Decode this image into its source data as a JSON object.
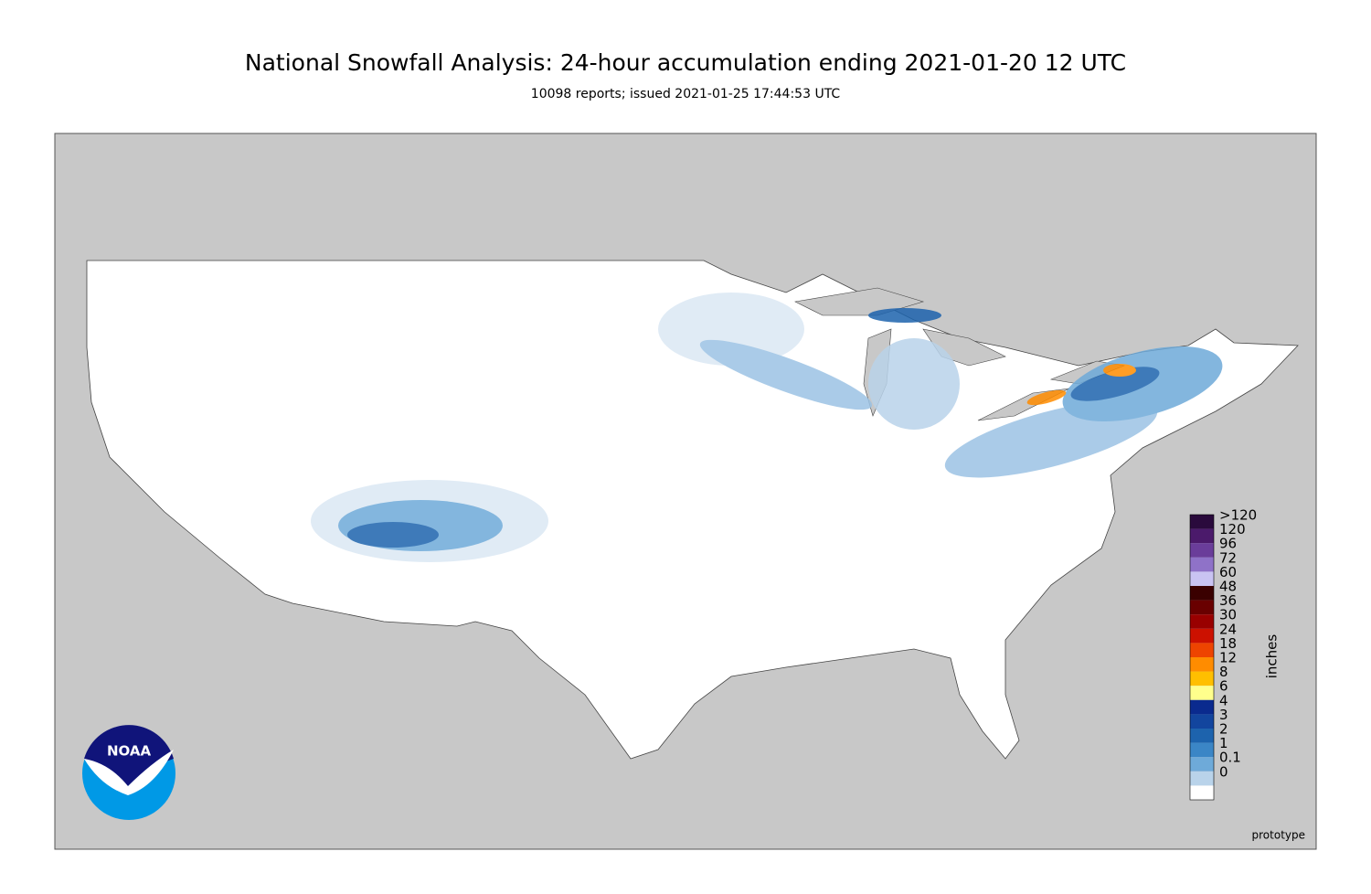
{
  "title": "National Snowfall Analysis: 24-hour accumulation ending 2021-01-20 12 UTC",
  "subtitle": "10098 reports; issued 2021-01-25 17:44:53 UTC",
  "legend": {
    "unit": "inches",
    "items": [
      {
        "label": ">120",
        "color": "#2a0a3c"
      },
      {
        "label": "120",
        "color": "#4b1a6b"
      },
      {
        "label": "96",
        "color": "#6a3d9a"
      },
      {
        "label": "72",
        "color": "#8f72c8"
      },
      {
        "label": "60",
        "color": "#c9c3f2"
      },
      {
        "label": "48",
        "color": "#3a0000"
      },
      {
        "label": "36",
        "color": "#690000"
      },
      {
        "label": "30",
        "color": "#990000"
      },
      {
        "label": "24",
        "color": "#cc1100"
      },
      {
        "label": "18",
        "color": "#ee4400"
      },
      {
        "label": "12",
        "color": "#ff8c00"
      },
      {
        "label": "8",
        "color": "#ffbf00"
      },
      {
        "label": "6",
        "color": "#ffff8c"
      },
      {
        "label": "4",
        "color": "#0a2a8e"
      },
      {
        "label": "3",
        "color": "#12459e"
      },
      {
        "label": "2",
        "color": "#1d63ad"
      },
      {
        "label": "1",
        "color": "#3b86c6"
      },
      {
        "label": "0.1",
        "color": "#6eaad9"
      },
      {
        "label": "0",
        "color": "#b9d3ea"
      }
    ]
  },
  "logo": "NOAA",
  "note": "prototype"
}
